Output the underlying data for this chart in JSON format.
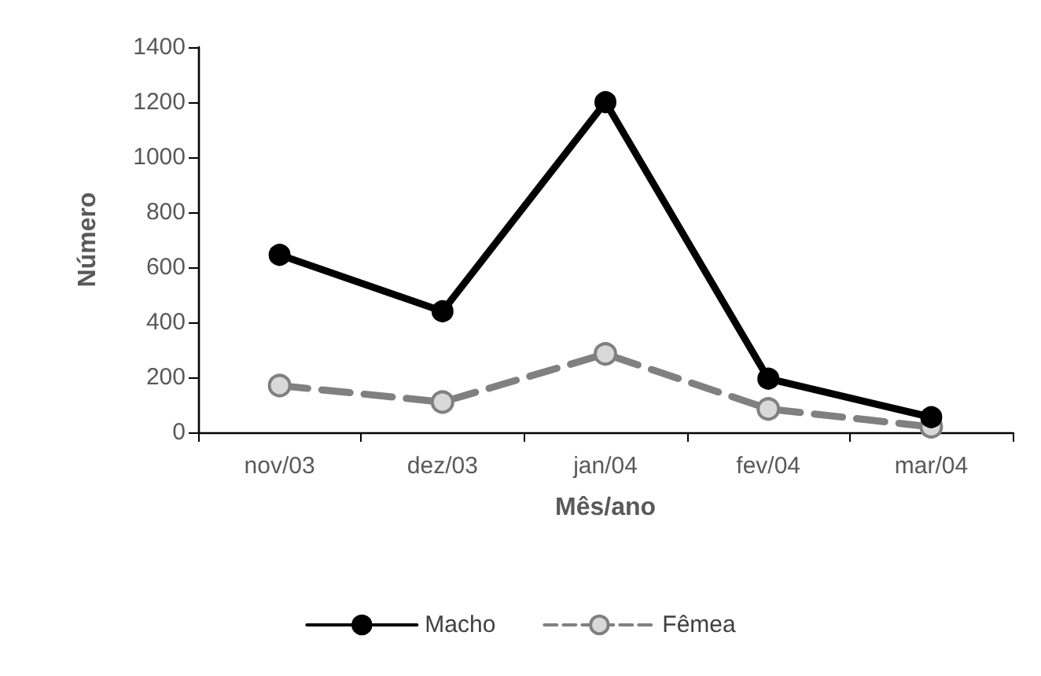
{
  "chart_data": {
    "type": "line",
    "xlabel": "Mês/ano",
    "ylabel": "Número",
    "categories": [
      "nov/03",
      "dez/03",
      "jan/04",
      "fev/04",
      "mar/04"
    ],
    "series": [
      {
        "name": "Macho",
        "color": "#000000",
        "line_style": "solid",
        "values": [
          645,
          440,
          1200,
          195,
          55
        ]
      },
      {
        "name": "Fêmea",
        "color": "#808080",
        "line_style": "dashed",
        "values": [
          170,
          110,
          285,
          85,
          20
        ]
      }
    ],
    "ylim": [
      0,
      1400
    ],
    "yticks": [
      0,
      200,
      400,
      600,
      800,
      1000,
      1200,
      1400
    ],
    "grid": false,
    "legend": "bottom",
    "marker": "circle"
  }
}
